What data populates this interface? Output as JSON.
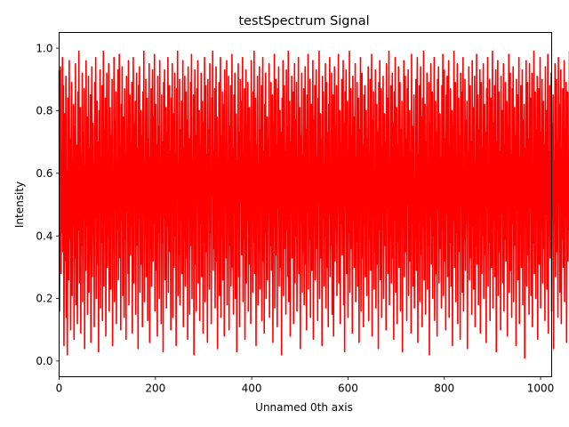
{
  "chart_data": {
    "type": "line",
    "title": "testSpectrum Signal",
    "xlabel": "Unnamed 0th axis",
    "ylabel": "Intensity",
    "xlim": [
      0,
      1023
    ],
    "ylim": [
      -0.05,
      1.05
    ],
    "xticks": [
      0,
      200,
      400,
      600,
      800,
      1000
    ],
    "xtick_labels": [
      "0",
      "200",
      "400",
      "600",
      "800",
      "1000"
    ],
    "yticks": [
      0.0,
      0.2,
      0.4,
      0.6,
      0.8,
      1.0
    ],
    "ytick_labels": [
      "0.0",
      "0.2",
      "0.4",
      "0.6",
      "0.8",
      "1.0"
    ],
    "grid": false,
    "series": [
      {
        "color": "#ff0000",
        "x_start": 0,
        "x_step": 1,
        "values": [
          0.93,
          0.16,
          0.72,
          0.94,
          0.28,
          0.67,
          0.41,
          0.97,
          0.35,
          0.88,
          0.05,
          0.52,
          0.79,
          0.32,
          0.91,
          0.14,
          0.61,
          0.02,
          0.84,
          0.48,
          0.26,
          0.96,
          0.39,
          0.71,
          0.1,
          0.57,
          0.89,
          0.21,
          0.64,
          0.45,
          0.82,
          0.07,
          0.75,
          0.33,
          0.95,
          0.18,
          0.59,
          0.69,
          0.12,
          0.86,
          0.42,
          0.99,
          0.25,
          0.54,
          0.81,
          0.09,
          0.66,
          0.37,
          0.92,
          0.19,
          0.73,
          0.48,
          0.87,
          0.04,
          0.62,
          0.29,
          0.96,
          0.43,
          0.78,
          0.15,
          0.53,
          0.91,
          0.22,
          0.68,
          0.34,
          0.85,
          0.06,
          0.58,
          0.94,
          0.27,
          0.76,
          0.41,
          0.63,
          0.11,
          0.89,
          0.46,
          0.97,
          0.2,
          0.55,
          0.83,
          0.31,
          0.7,
          0.03,
          0.8,
          0.49,
          0.93,
          0.17,
          0.65,
          0.38,
          0.88,
          0.13,
          0.6,
          0.99,
          0.24,
          0.74,
          0.44,
          0.84,
          0.08,
          0.57,
          0.92,
          0.3,
          0.67,
          0.4,
          0.95,
          0.16,
          0.52,
          0.81,
          0.23,
          0.72,
          0.47,
          0.9,
          0.05,
          0.61,
          0.36,
          0.97,
          0.19,
          0.77,
          0.5,
          0.86,
          0.12,
          0.64,
          0.42,
          0.93,
          0.26,
          0.58,
          0.98,
          0.33,
          0.69,
          0.1,
          0.82,
          0.45,
          0.94,
          0.21,
          0.56,
          0.78,
          0.14,
          0.87,
          0.39,
          0.66,
          0.07,
          0.91,
          0.48,
          0.74,
          0.28,
          0.96,
          0.18,
          0.53,
          0.85,
          0.34,
          0.7,
          0.43,
          0.89,
          0.09,
          0.62,
          0.97,
          0.25,
          0.76,
          0.51,
          0.83,
          0.15,
          0.59,
          0.92,
          0.37,
          0.68,
          0.04,
          0.88,
          0.46,
          0.94,
          0.22,
          0.55,
          0.8,
          0.31,
          0.72,
          0.11,
          0.86,
          0.47,
          0.99,
          0.19,
          0.63,
          0.4,
          0.9,
          0.27,
          0.57,
          0.84,
          0.13,
          0.71,
          0.49,
          0.95,
          0.06,
          0.65,
          0.36,
          0.87,
          0.24,
          0.6,
          0.93,
          0.32,
          0.78,
          0.44,
          0.98,
          0.16,
          0.54,
          0.82,
          0.29,
          0.69,
          0.08,
          0.91,
          0.41,
          0.75,
          0.2,
          0.96,
          0.5,
          0.64,
          0.12,
          0.85,
          0.38,
          0.7,
          0.03,
          0.89,
          0.46,
          0.93,
          0.26,
          0.58,
          0.81,
          0.17,
          0.73,
          0.43,
          0.97,
          0.22,
          0.61,
          0.88,
          0.35,
          0.67,
          0.1,
          0.84,
          0.48,
          0.95,
          0.14,
          0.56,
          0.79,
          0.3,
          0.92,
          0.4,
          0.66,
          0.05,
          0.87,
          0.52,
          0.99,
          0.21,
          0.63,
          0.34,
          0.9,
          0.18,
          0.74,
          0.45,
          0.83,
          0.28,
          0.57,
          0.96,
          0.11,
          0.68,
          0.39,
          0.91,
          0.24,
          0.6,
          0.86,
          0.33,
          0.77,
          0.07,
          0.94,
          0.47,
          0.71,
          0.15,
          0.52,
          0.89,
          0.37,
          0.98,
          0.2,
          0.64,
          0.42,
          0.85,
          0.02,
          0.59,
          0.93,
          0.31,
          0.72,
          0.16,
          0.87,
          0.5,
          0.96,
          0.25,
          0.55,
          0.8,
          0.13,
          0.69,
          0.44,
          0.92,
          0.27,
          0.62,
          0.83,
          0.09,
          0.76,
          0.38,
          0.97,
          0.19,
          0.58,
          0.88,
          0.35,
          0.66,
          0.06,
          0.9,
          0.48,
          0.74,
          0.23,
          0.95,
          0.41,
          0.61,
          0.12,
          0.84,
          0.53,
          0.99,
          0.29,
          0.67,
          0.36,
          0.87,
          0.17,
          0.57,
          0.94,
          0.32,
          0.78,
          0.04,
          0.65,
          0.46,
          0.89,
          0.21,
          0.6,
          0.97,
          0.14,
          0.72,
          0.4,
          0.86,
          0.26,
          0.54,
          0.82,
          0.08,
          0.93,
          0.49,
          0.7,
          0.33,
          0.96,
          0.18,
          0.63,
          0.43,
          0.91,
          0.1,
          0.75,
          0.37,
          0.88,
          0.24,
          0.59,
          0.98,
          0.3,
          0.68,
          0.15,
          0.85,
          0.47,
          0.92,
          0.2,
          0.56,
          0.79,
          0.03,
          0.64,
          0.42,
          0.95,
          0.27,
          0.73,
          0.11,
          0.9,
          0.51,
          0.83,
          0.34,
          0.61,
          0.97,
          0.19,
          0.66,
          0.39,
          0.87,
          0.07,
          0.58,
          0.93,
          0.25,
          0.76,
          0.45,
          0.89,
          0.16,
          0.55,
          0.81,
          0.31,
          0.7,
          0.12,
          0.96,
          0.48,
          0.62,
          0.22,
          0.86,
          0.38,
          0.99,
          0.28,
          0.57,
          0.84,
          0.05,
          0.69,
          0.44,
          0.91,
          0.18,
          0.63,
          0.35,
          0.94,
          0.23,
          0.74,
          0.5,
          0.88,
          0.13,
          0.6,
          0.97,
          0.32,
          0.67,
          0.09,
          0.82,
          0.41,
          0.92,
          0.2,
          0.54,
          0.78,
          0.26,
          0.71,
          0.46,
          0.95,
          0.14,
          0.65,
          0.37,
          0.89,
          0.29,
          0.58,
          0.85,
          0.06,
          0.76,
          0.43,
          0.98,
          0.17,
          0.62,
          0.9,
          0.34,
          0.69,
          0.11,
          0.87,
          0.49,
          0.94,
          0.24,
          0.56,
          0.8,
          0.3,
          0.73,
          0.02,
          0.84,
          0.45,
          0.96,
          0.21,
          0.6,
          0.88,
          0.36,
          0.67,
          0.15,
          0.93,
          0.42,
          0.75,
          0.27,
          0.99,
          0.19,
          0.55,
          0.83,
          0.08,
          0.7,
          0.47,
          0.91,
          0.33,
          0.64,
          0.86,
          0.12,
          0.59,
          0.95,
          0.25,
          0.77,
          0.4,
          0.89,
          0.16,
          0.63,
          0.5,
          0.97,
          0.28,
          0.57,
          0.81,
          0.04,
          0.72,
          0.44,
          0.92,
          0.22,
          0.66,
          0.35,
          0.87,
          0.18,
          0.53,
          0.94,
          0.31,
          0.74,
          0.1,
          0.85,
          0.48,
          0.98,
          0.23,
          0.61,
          0.39,
          0.9,
          0.14,
          0.68,
          0.82,
          0.29,
          0.56,
          0.96,
          0.07,
          0.77,
          0.43,
          0.88,
          0.26,
          0.6,
          0.93,
          0.36,
          0.65,
          0.13,
          0.84,
          0.51,
          0.99,
          0.2,
          0.58,
          0.79,
          0.33,
          0.71,
          0.05,
          0.91,
          0.46,
          0.86,
          0.24,
          0.63,
          0.4,
          0.95,
          0.17,
          0.54,
          0.89,
          0.3,
          0.73,
          0.11,
          0.82,
          0.47,
          0.97,
          0.27,
          0.61,
          0.37,
          0.92,
          0.15,
          0.68,
          0.85,
          0.08,
          0.57,
          0.94,
          0.32,
          0.75,
          0.42,
          0.88,
          0.21,
          0.64,
          0.5,
          0.98,
          0.25,
          0.55,
          0.8,
          0.12,
          0.7,
          0.44,
          0.9,
          0.34,
          0.62,
          0.96,
          0.18,
          0.76,
          0.03,
          0.86,
          0.49,
          0.93,
          0.28,
          0.59,
          0.83,
          0.14,
          0.67,
          0.41,
          0.99,
          0.22,
          0.56,
          0.87,
          0.36,
          0.72,
          0.09,
          0.91,
          0.45,
          0.78,
          0.3,
          0.6,
          0.95,
          0.19,
          0.65,
          0.38,
          0.89,
          0.24,
          0.53,
          0.84,
          0.06,
          0.74,
          0.48,
          0.97,
          0.16,
          0.62,
          0.92,
          0.33,
          0.69,
          0.11,
          0.85,
          0.43,
          0.88,
          0.27,
          0.57,
          0.8,
          0.21,
          0.71,
          0.5,
          0.94,
          0.13,
          0.66,
          0.39,
          0.9,
          0.29,
          0.54,
          0.98,
          0.08,
          0.77,
          0.46,
          0.86,
          0.23,
          0.61,
          0.35,
          0.93,
          0.17,
          0.59,
          0.82,
          0.31,
          0.73,
          0.04,
          0.89,
          0.42,
          0.96,
          0.26,
          0.64,
          0.87,
          0.14,
          0.68,
          0.47,
          0.91,
          0.2,
          0.55,
          0.79,
          0.37,
          0.7,
          0.1,
          0.95,
          0.49,
          0.84,
          0.28,
          0.58,
          0.99,
          0.18,
          0.63,
          0.4,
          0.88,
          0.25,
          0.52,
          0.92,
          0.33,
          0.76,
          0.07,
          0.86,
          0.45,
          0.97,
          0.22,
          0.6,
          0.81,
          0.12,
          0.69,
          0.38,
          0.94,
          0.3,
          0.56,
          0.89,
          0.16,
          0.74,
          0.48,
          0.83,
          0.03,
          0.65,
          0.42,
          0.96,
          0.27,
          0.59,
          0.91,
          0.35,
          0.71,
          0.13,
          0.87,
          0.5,
          0.93,
          0.21,
          0.57,
          0.8,
          0.32,
          0.67,
          0.09,
          0.98,
          0.44,
          0.75,
          0.24,
          0.62,
          0.85,
          0.17,
          0.55,
          0.39,
          0.9,
          0.29,
          0.72,
          0.97,
          0.06,
          0.66,
          0.47,
          0.88,
          0.19,
          0.61,
          0.94,
          0.34,
          0.78,
          0.11,
          0.84,
          0.43,
          0.99,
          0.26,
          0.58,
          0.82,
          0.15,
          0.7,
          0.51,
          0.92,
          0.23,
          0.64,
          0.37,
          0.89,
          0.02,
          0.76,
          0.46,
          0.95,
          0.31,
          0.56,
          0.86,
          0.2,
          0.68,
          0.4,
          0.97,
          0.13,
          0.6,
          0.83,
          0.28,
          0.73,
          0.08,
          0.9,
          0.49,
          0.94,
          0.25,
          0.54,
          0.79,
          0.36,
          0.65,
          0.17,
          0.88,
          0.42,
          0.98,
          0.21,
          0.62,
          0.93,
          0.32,
          0.71,
          0.1,
          0.85,
          0.47,
          0.91,
          0.27,
          0.57,
          0.96,
          0.14,
          0.69,
          0.38,
          0.87,
          0.24,
          0.53,
          0.8,
          0.05,
          0.75,
          0.45,
          0.99,
          0.3,
          0.61,
          0.89,
          0.19,
          0.66,
          0.41,
          0.95,
          0.12,
          0.58,
          0.84,
          0.35,
          0.72,
          0.07,
          0.92,
          0.5,
          0.86,
          0.22,
          0.63,
          0.97,
          0.16,
          0.55,
          0.39,
          0.9,
          0.29,
          0.77,
          0.44,
          0.83,
          0.04,
          0.67,
          0.48,
          0.94,
          0.26,
          0.59,
          0.88,
          0.33,
          0.7,
          0.15,
          0.96,
          0.43,
          0.81,
          0.23,
          0.6,
          0.91,
          0.11,
          0.64,
          0.37,
          0.98,
          0.31,
          0.56,
          0.85,
          0.18,
          0.74,
          0.46,
          0.93,
          0.09,
          0.62,
          0.89,
          0.28,
          0.68,
          0.4,
          0.95,
          0.2,
          0.57,
          0.82,
          0.34,
          0.73,
          0.06,
          0.87,
          0.49,
          0.97,
          0.24,
          0.61,
          0.38,
          0.9,
          0.13,
          0.65,
          0.84,
          0.3,
          0.54,
          0.99,
          0.17,
          0.76,
          0.45,
          0.88,
          0.27,
          0.59,
          0.93,
          0.03,
          0.7,
          0.42,
          0.96,
          0.21,
          0.63,
          0.86,
          0.35,
          0.67,
          0.1,
          0.91,
          0.47,
          0.8,
          0.25,
          0.58,
          0.95,
          0.16,
          0.69,
          0.39,
          0.89,
          0.32,
          0.55,
          0.83,
          0.08,
          0.75,
          0.5,
          0.98,
          0.22,
          0.62,
          0.92,
          0.29,
          0.66,
          0.14,
          0.87,
          0.44,
          0.94,
          0.19,
          0.57,
          0.81,
          0.37,
          0.72,
          0.05,
          0.9,
          0.48,
          0.85,
          0.26,
          0.61,
          0.97,
          0.12,
          0.65,
          0.41,
          0.88,
          0.3,
          0.53,
          0.93,
          0.18,
          0.77,
          0.46,
          0.82,
          0.01,
          0.68,
          0.43,
          0.96,
          0.24,
          0.6,
          0.89,
          0.34,
          0.71,
          0.15,
          0.95,
          0.49,
          0.84,
          0.21,
          0.56,
          0.92,
          0.11,
          0.63,
          0.38,
          0.99,
          0.28,
          0.58,
          0.86,
          0.2,
          0.74,
          0.45,
          0.91,
          0.07,
          0.66,
          0.87,
          0.31,
          0.54,
          0.97,
          0.17,
          0.73,
          0.42,
          0.9,
          0.25,
          0.6,
          0.83,
          0.36,
          0.69,
          0.13,
          0.94,
          0.47,
          0.8,
          0.23,
          0.62,
          0.98,
          0.09,
          0.67,
          0.4,
          0.88,
          0.33,
          0.55,
          0.92,
          0.16,
          0.76,
          0.48,
          0.85,
          0.04,
          0.64,
          0.44,
          0.95,
          0.27,
          0.59,
          0.9,
          0.35,
          0.7,
          0.14,
          0.97,
          0.5,
          0.82,
          0.22,
          0.57,
          0.93,
          0.12,
          0.68,
          0.39,
          0.87,
          0.3,
          0.53,
          0.96,
          0.19,
          0.74,
          0.46,
          0.89,
          0.06,
          0.63,
          0.86,
          0.32,
          0.66,
          0.42,
          0.99,
          0.21,
          0.6,
          0.84,
          0.37,
          0.72,
          0.1,
          0.91,
          0.48,
          0.94,
          0.26,
          0.56,
          0.81,
          0.15,
          0.69,
          0.41,
          0.97,
          0.28,
          0.61,
          0.88,
          0.18,
          0.75,
          0.45,
          0.92,
          0.08,
          0.65,
          0.85,
          0.34,
          0.58,
          0.95,
          0.2,
          0.71,
          0.43,
          0.9,
          0.3,
          0.54,
          0.8,
          0.16,
          0.68,
          0.49,
          0.91,
          0.24,
          0.62,
          0.38,
          0.87,
          0.33,
          0.59,
          0.93,
          0.18,
          0.66,
          0.48
        ]
      }
    ]
  }
}
